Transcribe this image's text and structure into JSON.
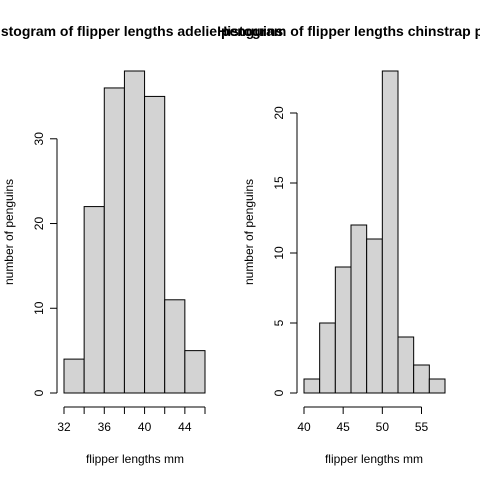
{
  "chart_data": [
    {
      "type": "bar",
      "title": "Histogram of flipper lengths adelie penguins",
      "xlabel": "flipper lengths mm",
      "ylabel": "number of penguins",
      "bins": [
        {
          "x0": 32,
          "x1": 34,
          "count": 4
        },
        {
          "x0": 34,
          "x1": 36,
          "count": 22
        },
        {
          "x0": 36,
          "x1": 38,
          "count": 36
        },
        {
          "x0": 38,
          "x1": 40,
          "count": 38
        },
        {
          "x0": 40,
          "x1": 42,
          "count": 35
        },
        {
          "x0": 42,
          "x1": 44,
          "count": 11
        },
        {
          "x0": 44,
          "x1": 46,
          "count": 5
        }
      ],
      "xlim": [
        32,
        46
      ],
      "ylim": [
        0,
        38
      ],
      "xticks": [
        32,
        34,
        36,
        38,
        40,
        42,
        44,
        46
      ],
      "xtick_labels": [
        "32",
        "",
        "36",
        "",
        "40",
        "",
        "44",
        ""
      ],
      "yticks": [
        0,
        10,
        20,
        30
      ],
      "ytick_labels": [
        "0",
        "10",
        "20",
        "30"
      ],
      "grid": false
    },
    {
      "type": "bar",
      "title": "Histogram of flipper lengths chinstrap penguins",
      "xlabel": "flipper lengths mm",
      "ylabel": "number of penguins",
      "bins": [
        {
          "x0": 40,
          "x1": 42,
          "count": 1
        },
        {
          "x0": 42,
          "x1": 44,
          "count": 5
        },
        {
          "x0": 44,
          "x1": 46,
          "count": 9
        },
        {
          "x0": 46,
          "x1": 48,
          "count": 12
        },
        {
          "x0": 48,
          "x1": 50,
          "count": 11
        },
        {
          "x0": 50,
          "x1": 52,
          "count": 23
        },
        {
          "x0": 52,
          "x1": 54,
          "count": 4
        },
        {
          "x0": 54,
          "x1": 56,
          "count": 2
        },
        {
          "x0": 56,
          "x1": 58,
          "count": 1
        }
      ],
      "xlim": [
        40,
        58
      ],
      "ylim": [
        0,
        23
      ],
      "xticks": [
        40,
        45,
        50,
        55
      ],
      "xtick_labels": [
        "40",
        "45",
        "50",
        "55"
      ],
      "yticks": [
        0,
        5,
        10,
        15,
        20
      ],
      "ytick_labels": [
        "0",
        "5",
        "10",
        "15",
        "20"
      ],
      "grid": false
    }
  ]
}
